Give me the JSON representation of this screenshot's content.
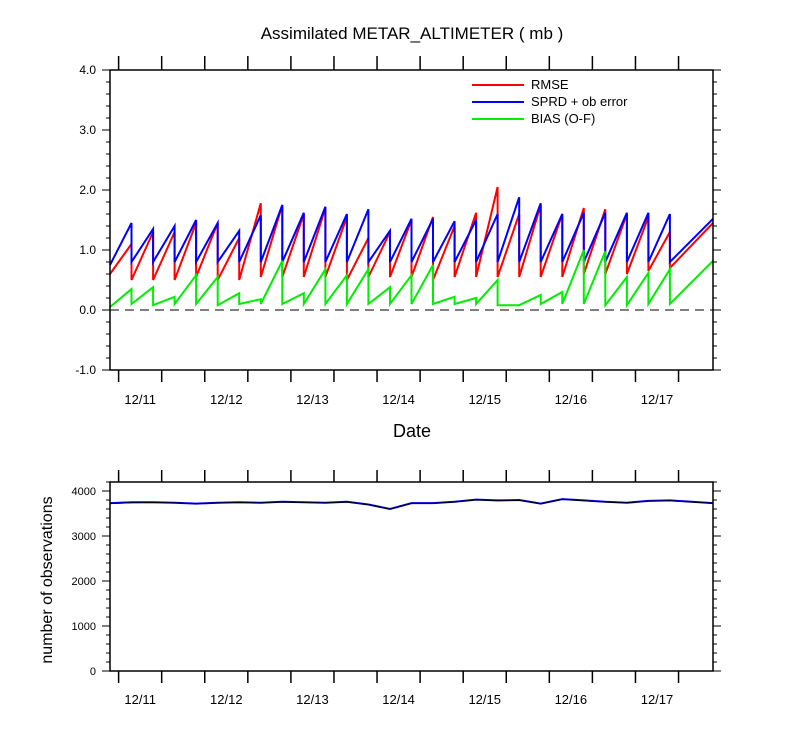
{
  "chart_data": [
    {
      "type": "line",
      "title": "Assimilated METAR_ALTIMETER ( mb )",
      "xlabel": "Date",
      "ylabel": "",
      "ylim": [
        -1.0,
        4.0
      ],
      "yticks": [
        "-1.0",
        "0.0",
        "1.0",
        "2.0",
        "3.0",
        "4.0"
      ],
      "xlim": [
        12.9,
        19.9
      ],
      "xticks": [
        {
          "label": "12/11",
          "value": 13.25
        },
        {
          "label": "12/12",
          "value": 14.25
        },
        {
          "label": "12/13",
          "value": 15.25
        },
        {
          "label": "12/14",
          "value": 16.25
        },
        {
          "label": "12/15",
          "value": 17.25
        },
        {
          "label": "12/16",
          "value": 18.25
        },
        {
          "label": "12/17",
          "value": 19.25
        }
      ],
      "reference_line": {
        "y": 0.0,
        "style": "dashed"
      },
      "legend": {
        "position": "top-right"
      },
      "colors": {
        "RMSE": "#ff0000",
        "SPRD + ob error": "#0000ff",
        "BIAS (O-F)": "#00ee00"
      },
      "series": [
        {
          "name": "RMSE",
          "segments": [
            [
              [
                12.9,
                0.6
              ],
              [
                13.15,
                1.1
              ]
            ],
            [
              [
                13.15,
                0.5
              ],
              [
                13.4,
                1.3
              ]
            ],
            [
              [
                13.4,
                0.5
              ],
              [
                13.65,
                1.3
              ]
            ],
            [
              [
                13.65,
                0.5
              ],
              [
                13.9,
                1.45
              ]
            ],
            [
              [
                13.9,
                0.55
              ],
              [
                14.15,
                1.45
              ]
            ],
            [
              [
                14.15,
                0.5
              ],
              [
                14.4,
                1.2
              ]
            ],
            [
              [
                14.4,
                0.5
              ],
              [
                14.65,
                1.78
              ]
            ],
            [
              [
                14.65,
                0.55
              ],
              [
                14.9,
                1.75
              ]
            ],
            [
              [
                14.9,
                0.55
              ],
              [
                15.15,
                1.6
              ]
            ],
            [
              [
                15.15,
                0.55
              ],
              [
                15.4,
                1.7
              ]
            ],
            [
              [
                15.4,
                0.55
              ],
              [
                15.65,
                1.55
              ]
            ],
            [
              [
                15.65,
                0.5
              ],
              [
                15.9,
                1.2
              ]
            ],
            [
              [
                15.9,
                0.55
              ],
              [
                16.15,
                1.3
              ]
            ],
            [
              [
                16.15,
                0.55
              ],
              [
                16.4,
                1.5
              ]
            ],
            [
              [
                16.4,
                0.55
              ],
              [
                16.65,
                1.55
              ]
            ],
            [
              [
                16.65,
                0.5
              ],
              [
                16.9,
                1.4
              ]
            ],
            [
              [
                16.9,
                0.55
              ],
              [
                17.15,
                1.62
              ]
            ],
            [
              [
                17.15,
                0.55
              ],
              [
                17.4,
                2.05
              ]
            ],
            [
              [
                17.4,
                0.55
              ],
              [
                17.65,
                1.6
              ]
            ],
            [
              [
                17.65,
                0.55
              ],
              [
                17.9,
                1.75
              ]
            ],
            [
              [
                17.9,
                0.55
              ],
              [
                18.15,
                1.6
              ]
            ],
            [
              [
                18.15,
                0.55
              ],
              [
                18.4,
                1.7
              ]
            ],
            [
              [
                18.4,
                0.6
              ],
              [
                18.65,
                1.68
              ]
            ],
            [
              [
                18.65,
                0.6
              ],
              [
                18.9,
                1.6
              ]
            ],
            [
              [
                18.9,
                0.6
              ],
              [
                19.15,
                1.55
              ]
            ],
            [
              [
                19.15,
                0.65
              ],
              [
                19.4,
                1.3
              ]
            ],
            [
              [
                19.4,
                0.7
              ],
              [
                19.9,
                1.45
              ]
            ]
          ]
        },
        {
          "name": "SPRD + ob error",
          "segments": [
            [
              [
                12.9,
                0.75
              ],
              [
                13.15,
                1.45
              ]
            ],
            [
              [
                13.15,
                0.8
              ],
              [
                13.4,
                1.35
              ]
            ],
            [
              [
                13.4,
                0.8
              ],
              [
                13.65,
                1.4
              ]
            ],
            [
              [
                13.65,
                0.8
              ],
              [
                13.9,
                1.5
              ]
            ],
            [
              [
                13.9,
                0.8
              ],
              [
                14.15,
                1.45
              ]
            ],
            [
              [
                14.15,
                0.8
              ],
              [
                14.4,
                1.32
              ]
            ],
            [
              [
                14.4,
                0.8
              ],
              [
                14.65,
                1.58
              ]
            ],
            [
              [
                14.65,
                0.8
              ],
              [
                14.9,
                1.75
              ]
            ],
            [
              [
                14.9,
                0.8
              ],
              [
                15.15,
                1.62
              ]
            ],
            [
              [
                15.15,
                0.8
              ],
              [
                15.4,
                1.72
              ]
            ],
            [
              [
                15.4,
                0.8
              ],
              [
                15.65,
                1.6
              ]
            ],
            [
              [
                15.65,
                0.8
              ],
              [
                15.9,
                1.68
              ]
            ],
            [
              [
                15.9,
                0.8
              ],
              [
                16.15,
                1.32
              ]
            ],
            [
              [
                16.15,
                0.8
              ],
              [
                16.4,
                1.52
              ]
            ],
            [
              [
                16.4,
                0.8
              ],
              [
                16.65,
                1.52
              ]
            ],
            [
              [
                16.65,
                0.8
              ],
              [
                16.9,
                1.48
              ]
            ],
            [
              [
                16.9,
                0.8
              ],
              [
                17.15,
                1.5
              ]
            ],
            [
              [
                17.15,
                0.8
              ],
              [
                17.4,
                1.6
              ]
            ],
            [
              [
                17.4,
                0.8
              ],
              [
                17.65,
                1.88
              ]
            ],
            [
              [
                17.65,
                0.8
              ],
              [
                17.9,
                1.78
              ]
            ],
            [
              [
                17.9,
                0.8
              ],
              [
                18.15,
                1.6
              ]
            ],
            [
              [
                18.15,
                0.8
              ],
              [
                18.4,
                1.62
              ]
            ],
            [
              [
                18.4,
                0.8
              ],
              [
                18.65,
                1.62
              ]
            ],
            [
              [
                18.65,
                0.8
              ],
              [
                18.9,
                1.62
              ]
            ],
            [
              [
                18.9,
                0.8
              ],
              [
                19.15,
                1.62
              ]
            ],
            [
              [
                19.15,
                0.8
              ],
              [
                19.4,
                1.6
              ]
            ],
            [
              [
                19.4,
                0.8
              ],
              [
                19.9,
                1.52
              ]
            ]
          ]
        },
        {
          "name": "BIAS (O-F)",
          "segments": [
            [
              [
                12.9,
                0.05
              ],
              [
                13.15,
                0.35
              ]
            ],
            [
              [
                13.15,
                0.1
              ],
              [
                13.4,
                0.38
              ]
            ],
            [
              [
                13.4,
                0.08
              ],
              [
                13.65,
                0.22
              ]
            ],
            [
              [
                13.65,
                0.1
              ],
              [
                13.9,
                0.58
              ]
            ],
            [
              [
                13.9,
                0.1
              ],
              [
                14.15,
                0.55
              ]
            ],
            [
              [
                14.15,
                0.08
              ],
              [
                14.4,
                0.28
              ]
            ],
            [
              [
                14.4,
                0.1
              ],
              [
                14.65,
                0.18
              ]
            ],
            [
              [
                14.65,
                0.1
              ],
              [
                14.9,
                0.82
              ]
            ],
            [
              [
                14.9,
                0.1
              ],
              [
                15.15,
                0.28
              ]
            ],
            [
              [
                15.15,
                0.1
              ],
              [
                15.4,
                0.68
              ]
            ],
            [
              [
                15.4,
                0.1
              ],
              [
                15.65,
                0.58
              ]
            ],
            [
              [
                15.65,
                0.1
              ],
              [
                15.9,
                0.68
              ]
            ],
            [
              [
                15.9,
                0.1
              ],
              [
                16.15,
                0.38
              ]
            ],
            [
              [
                16.15,
                0.1
              ],
              [
                16.4,
                0.58
              ]
            ],
            [
              [
                16.4,
                0.1
              ],
              [
                16.65,
                0.75
              ]
            ],
            [
              [
                16.65,
                0.1
              ],
              [
                16.9,
                0.22
              ]
            ],
            [
              [
                16.9,
                0.1
              ],
              [
                17.15,
                0.2
              ]
            ],
            [
              [
                17.15,
                0.1
              ],
              [
                17.4,
                0.5
              ]
            ],
            [
              [
                17.4,
                0.08
              ],
              [
                17.65,
                0.08
              ]
            ],
            [
              [
                17.65,
                0.08
              ],
              [
                17.9,
                0.25
              ]
            ],
            [
              [
                17.9,
                0.1
              ],
              [
                18.15,
                0.3
              ]
            ],
            [
              [
                18.15,
                0.1
              ],
              [
                18.4,
                1.0
              ]
            ],
            [
              [
                18.4,
                0.1
              ],
              [
                18.65,
                0.98
              ]
            ],
            [
              [
                18.65,
                0.08
              ],
              [
                18.9,
                0.55
              ]
            ],
            [
              [
                18.9,
                0.08
              ],
              [
                19.15,
                0.62
              ]
            ],
            [
              [
                19.15,
                0.1
              ],
              [
                19.4,
                0.68
              ]
            ],
            [
              [
                19.4,
                0.1
              ],
              [
                19.9,
                0.82
              ]
            ]
          ]
        }
      ]
    },
    {
      "type": "line",
      "title": "",
      "xlabel": "",
      "ylabel": "number of observations",
      "ylim": [
        0,
        4200
      ],
      "yticks": [
        "0",
        "1000",
        "2000",
        "3000",
        "4000"
      ],
      "xlim": [
        12.9,
        19.9
      ],
      "xticks": [
        {
          "label": "12/11",
          "value": 13.25
        },
        {
          "label": "12/12",
          "value": 14.25
        },
        {
          "label": "12/13",
          "value": 15.25
        },
        {
          "label": "12/14",
          "value": 16.25
        },
        {
          "label": "12/15",
          "value": 17.25
        },
        {
          "label": "12/16",
          "value": 18.25
        },
        {
          "label": "12/17",
          "value": 19.25
        }
      ],
      "colors": {
        "line1": "#0000ff",
        "line2": "#000000"
      },
      "series": [
        {
          "x": [
            12.9,
            13.15,
            13.4,
            13.65,
            13.9,
            14.15,
            14.4,
            14.65,
            14.9,
            15.15,
            15.4,
            15.65,
            15.9,
            16.15,
            16.4,
            16.65,
            16.9,
            17.15,
            17.4,
            17.65,
            17.9,
            18.15,
            18.4,
            18.65,
            18.9,
            19.15,
            19.4,
            19.65,
            19.9
          ],
          "values": [
            3730,
            3750,
            3750,
            3740,
            3720,
            3740,
            3750,
            3740,
            3760,
            3750,
            3740,
            3760,
            3700,
            3600,
            3730,
            3730,
            3760,
            3810,
            3790,
            3800,
            3720,
            3820,
            3790,
            3760,
            3740,
            3780,
            3790,
            3760,
            3730
          ]
        },
        {
          "x": [
            12.9,
            13.15,
            13.4,
            13.65,
            13.9,
            14.15,
            14.4,
            14.65,
            14.9,
            15.15,
            15.4,
            15.65,
            15.9,
            16.15,
            16.4,
            16.65,
            16.9,
            17.15,
            17.4,
            17.65,
            17.9,
            18.15,
            18.4,
            18.65,
            18.9,
            19.15,
            19.4,
            19.65,
            19.9
          ],
          "values": [
            3720,
            3740,
            3745,
            3735,
            3715,
            3735,
            3745,
            3735,
            3755,
            3745,
            3735,
            3755,
            3695,
            3595,
            3725,
            3725,
            3755,
            3805,
            3785,
            3795,
            3715,
            3815,
            3785,
            3755,
            3735,
            3775,
            3785,
            3755,
            3725
          ]
        }
      ]
    }
  ]
}
